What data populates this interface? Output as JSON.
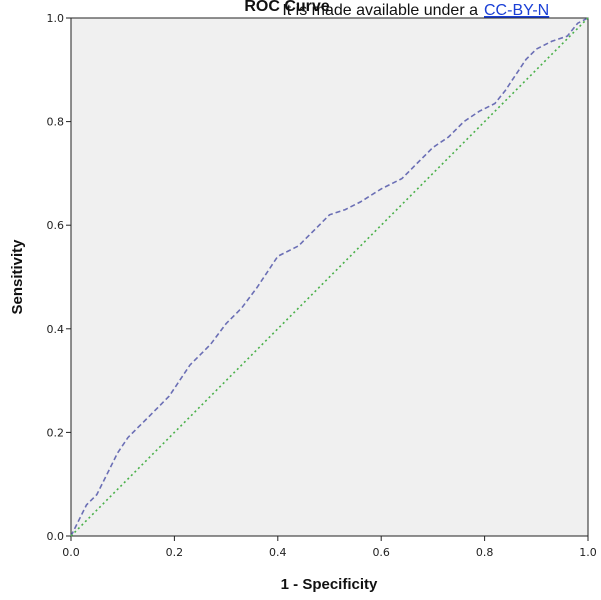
{
  "chart_data": {
    "type": "line",
    "title": "ROC Curve",
    "xlabel": "1 - Specificity",
    "ylabel": "Sensitivity",
    "xlim": [
      0,
      1
    ],
    "ylim": [
      0,
      1
    ],
    "x_ticks": [
      "0.0",
      "0.2",
      "0.4",
      "0.6",
      "0.8",
      "1.0"
    ],
    "y_ticks": [
      "0.0",
      "0.2",
      "0.4",
      "0.6",
      "0.8",
      "1.0"
    ],
    "grid": false,
    "legend": "none",
    "series": [
      {
        "color": "#6b6fb5",
        "line_style": "dashed",
        "points": [
          [
            0.0,
            0.0
          ],
          [
            0.02,
            0.04
          ],
          [
            0.03,
            0.06
          ],
          [
            0.05,
            0.08
          ],
          [
            0.07,
            0.12
          ],
          [
            0.09,
            0.16
          ],
          [
            0.11,
            0.19
          ],
          [
            0.13,
            0.21
          ],
          [
            0.15,
            0.23
          ],
          [
            0.17,
            0.25
          ],
          [
            0.19,
            0.27
          ],
          [
            0.21,
            0.3
          ],
          [
            0.23,
            0.33
          ],
          [
            0.25,
            0.35
          ],
          [
            0.27,
            0.37
          ],
          [
            0.3,
            0.41
          ],
          [
            0.33,
            0.44
          ],
          [
            0.36,
            0.48
          ],
          [
            0.38,
            0.51
          ],
          [
            0.4,
            0.54
          ],
          [
            0.42,
            0.55
          ],
          [
            0.44,
            0.56
          ],
          [
            0.46,
            0.58
          ],
          [
            0.48,
            0.6
          ],
          [
            0.5,
            0.62
          ],
          [
            0.53,
            0.63
          ],
          [
            0.56,
            0.645
          ],
          [
            0.6,
            0.67
          ],
          [
            0.64,
            0.69
          ],
          [
            0.67,
            0.72
          ],
          [
            0.7,
            0.75
          ],
          [
            0.73,
            0.77
          ],
          [
            0.76,
            0.8
          ],
          [
            0.79,
            0.82
          ],
          [
            0.82,
            0.835
          ],
          [
            0.84,
            0.86
          ],
          [
            0.86,
            0.89
          ],
          [
            0.88,
            0.92
          ],
          [
            0.9,
            0.94
          ],
          [
            0.93,
            0.955
          ],
          [
            0.96,
            0.965
          ],
          [
            0.98,
            0.99
          ],
          [
            1.0,
            1.0
          ]
        ]
      },
      {
        "color": "#4ab04a",
        "line_style": "dotted",
        "points": [
          [
            0.0,
            0.0
          ],
          [
            1.0,
            1.0
          ]
        ]
      }
    ]
  },
  "notice": {
    "text": "It is made available under a",
    "link": "CC-BY-N"
  },
  "colors": {
    "plot_background": "#f0f0f0",
    "axis": "#222222"
  }
}
